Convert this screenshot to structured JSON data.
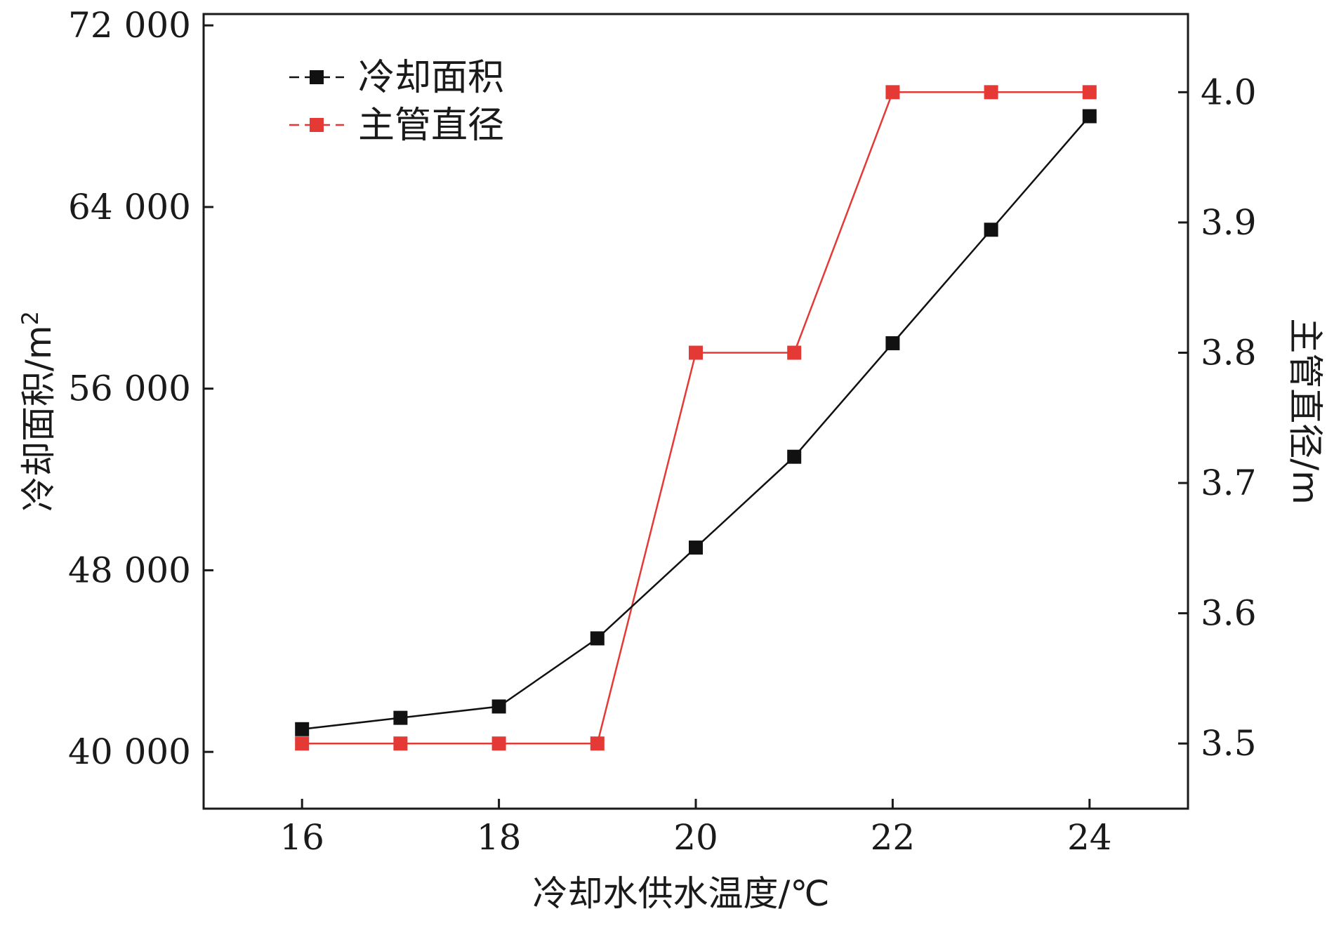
{
  "chart_data": {
    "type": "line",
    "x": [
      16,
      17,
      18,
      19,
      20,
      21,
      22,
      23,
      24
    ],
    "xlim": [
      15,
      25
    ],
    "x_ticks": [
      16,
      18,
      20,
      22,
      24
    ],
    "x_tick_labels": [
      "16",
      "18",
      "20",
      "22",
      "24"
    ],
    "xlabel": "冷却水供水温度/℃",
    "y_left": {
      "label_main": "冷却面积/m",
      "label_sup": "2",
      "lim": [
        37500,
        72500
      ],
      "ticks": [
        40000,
        48000,
        56000,
        64000,
        72000
      ],
      "tick_labels": [
        "40 000",
        "48 000",
        "56 000",
        "64 000",
        "72 000"
      ]
    },
    "y_right": {
      "label": "主管直径/m",
      "lim": [
        3.45,
        4.06
      ],
      "ticks": [
        3.5,
        3.6,
        3.7,
        3.8,
        3.9,
        4.0
      ],
      "tick_labels": [
        "3.5",
        "3.6",
        "3.7",
        "3.8",
        "3.9",
        "4.0"
      ]
    },
    "series": [
      {
        "name": "冷却面积",
        "axis": "left",
        "color": "#111111",
        "values": [
          41000,
          41500,
          42000,
          45000,
          49000,
          53000,
          58000,
          63000,
          68000
        ]
      },
      {
        "name": "主管直径",
        "axis": "right",
        "color": "#e53935",
        "values": [
          3.5,
          3.5,
          3.5,
          3.5,
          3.8,
          3.8,
          4.0,
          4.0,
          4.0
        ]
      }
    ],
    "legend_position": "top-left",
    "grid": false
  }
}
